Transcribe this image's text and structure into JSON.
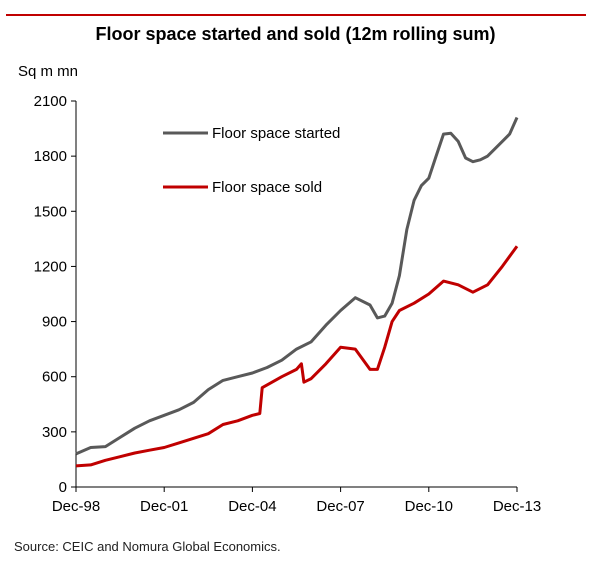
{
  "chart_data": {
    "type": "line",
    "title": "Floor space started and sold (12m rolling sum)",
    "ylabel": "Sq m mn",
    "xlabel": "",
    "ylim": [
      0,
      2100
    ],
    "yticks": [
      0,
      300,
      600,
      900,
      1200,
      1500,
      1800,
      2100
    ],
    "xticks": [
      "Dec-98",
      "Dec-01",
      "Dec-04",
      "Dec-07",
      "Dec-10",
      "Dec-13"
    ],
    "xlim": [
      "Dec-98",
      "Dec-13"
    ],
    "grid": false,
    "legend_position": "upper-left",
    "source": "Source: CEIC and Nomura Global Economics.",
    "series": [
      {
        "name": "Floor space started",
        "color": "#595959",
        "points": [
          [
            "Dec-98",
            180
          ],
          [
            "Jun-99",
            215
          ],
          [
            "Dec-99",
            220
          ],
          [
            "Jun-00",
            270
          ],
          [
            "Dec-00",
            320
          ],
          [
            "Jun-01",
            360
          ],
          [
            "Dec-01",
            390
          ],
          [
            "Jun-02",
            420
          ],
          [
            "Dec-02",
            460
          ],
          [
            "Jun-03",
            530
          ],
          [
            "Dec-03",
            580
          ],
          [
            "Jun-04",
            600
          ],
          [
            "Dec-04",
            620
          ],
          [
            "Jun-05",
            650
          ],
          [
            "Dec-05",
            690
          ],
          [
            "Jun-06",
            750
          ],
          [
            "Dec-06",
            790
          ],
          [
            "Jun-07",
            880
          ],
          [
            "Dec-07",
            960
          ],
          [
            "Jun-08",
            1030
          ],
          [
            "Dec-08",
            990
          ],
          [
            "Mar-09",
            920
          ],
          [
            "Jun-09",
            930
          ],
          [
            "Sep-09",
            1000
          ],
          [
            "Dec-09",
            1150
          ],
          [
            "Mar-10",
            1400
          ],
          [
            "Jun-10",
            1560
          ],
          [
            "Sep-10",
            1640
          ],
          [
            "Dec-10",
            1680
          ],
          [
            "Mar-11",
            1800
          ],
          [
            "Jun-11",
            1920
          ],
          [
            "Sep-11",
            1925
          ],
          [
            "Dec-11",
            1880
          ],
          [
            "Mar-12",
            1790
          ],
          [
            "Jun-12",
            1770
          ],
          [
            "Sep-12",
            1780
          ],
          [
            "Dec-12",
            1800
          ],
          [
            "Mar-13",
            1840
          ],
          [
            "Jun-13",
            1880
          ],
          [
            "Sep-13",
            1920
          ],
          [
            "Dec-13",
            2010
          ]
        ]
      },
      {
        "name": "Floor space sold",
        "color": "#c00000",
        "points": [
          [
            "Dec-98",
            115
          ],
          [
            "Jun-99",
            120
          ],
          [
            "Dec-99",
            145
          ],
          [
            "Jun-00",
            165
          ],
          [
            "Dec-00",
            185
          ],
          [
            "Jun-01",
            200
          ],
          [
            "Dec-01",
            215
          ],
          [
            "Jun-02",
            240
          ],
          [
            "Dec-02",
            265
          ],
          [
            "Jun-03",
            290
          ],
          [
            "Dec-03",
            340
          ],
          [
            "Jun-04",
            360
          ],
          [
            "Dec-04",
            390
          ],
          [
            "Mar-05",
            400
          ],
          [
            "Apr-05",
            540
          ],
          [
            "Dec-05",
            600
          ],
          [
            "Jun-06",
            640
          ],
          [
            "Aug-06",
            670
          ],
          [
            "Sep-06",
            570
          ],
          [
            "Dec-06",
            590
          ],
          [
            "Jun-07",
            670
          ],
          [
            "Dec-07",
            760
          ],
          [
            "Jun-08",
            750
          ],
          [
            "Dec-08",
            640
          ],
          [
            "Mar-09",
            640
          ],
          [
            "Jun-09",
            760
          ],
          [
            "Sep-09",
            900
          ],
          [
            "Dec-09",
            960
          ],
          [
            "Jun-10",
            1000
          ],
          [
            "Dec-10",
            1050
          ],
          [
            "Jun-11",
            1120
          ],
          [
            "Dec-11",
            1100
          ],
          [
            "Jun-12",
            1060
          ],
          [
            "Dec-12",
            1100
          ],
          [
            "Jun-13",
            1200
          ],
          [
            "Dec-13",
            1310
          ]
        ]
      }
    ]
  }
}
